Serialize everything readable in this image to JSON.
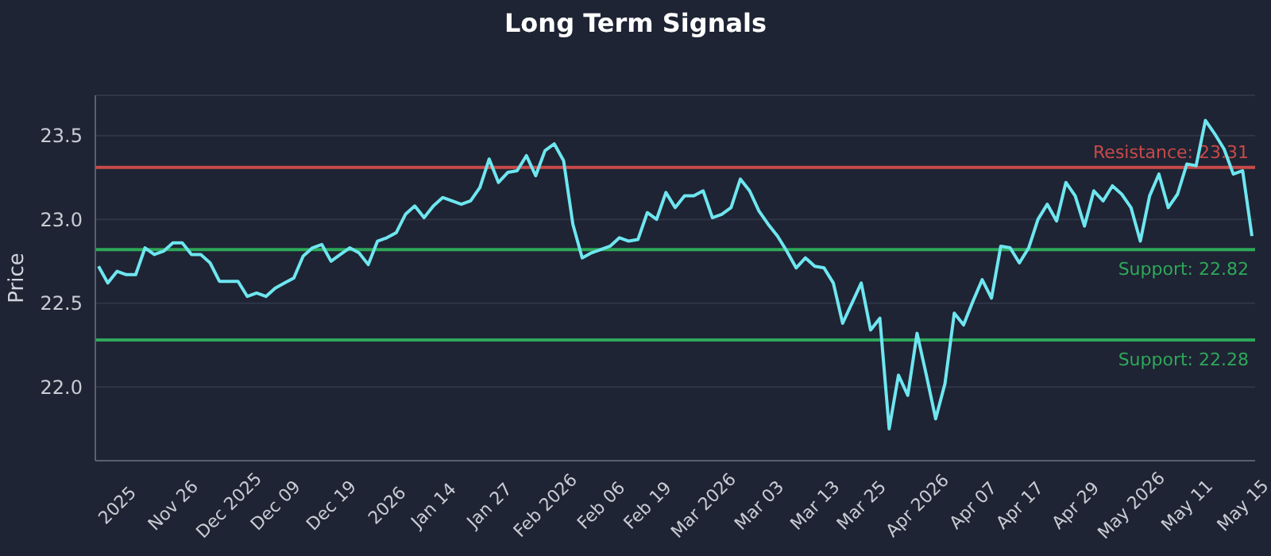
{
  "chart_data": {
    "type": "line",
    "title": "Long Term Signals",
    "ylabel": "Price",
    "categories": [
      null,
      null,
      "2025",
      null,
      null,
      null,
      null,
      null,
      "Nov 26",
      null,
      null,
      null,
      null,
      null,
      "Dec 2025",
      null,
      null,
      null,
      null,
      "Dec 09",
      null,
      null,
      null,
      null,
      null,
      "Dec 19",
      null,
      null,
      null,
      null,
      null,
      "2026",
      null,
      null,
      null,
      null,
      "Jan 14",
      null,
      null,
      null,
      null,
      null,
      "Jan 27",
      null,
      null,
      null,
      null,
      null,
      "Feb 2026",
      null,
      null,
      null,
      null,
      null,
      "Feb 06",
      null,
      null,
      null,
      null,
      "Feb 19",
      null,
      null,
      null,
      null,
      null,
      "Mar 2026",
      null,
      null,
      null,
      null,
      null,
      "Mar 03",
      null,
      null,
      null,
      null,
      null,
      "Mar 13",
      null,
      null,
      null,
      null,
      "Mar 25",
      null,
      null,
      null,
      null,
      null,
      "Apr 2026",
      null,
      null,
      null,
      null,
      null,
      "Apr 07",
      null,
      null,
      null,
      null,
      "Apr 17",
      null,
      null,
      null,
      null,
      null,
      "Apr 29",
      null,
      null,
      null,
      null,
      null,
      "May 2026",
      null,
      null,
      null,
      null,
      null,
      "May 11",
      null,
      null,
      null,
      null,
      null,
      "May 15",
      null
    ],
    "series": [
      {
        "color": "#6ee6f0",
        "values": [
          22.72,
          22.62,
          22.69,
          22.67,
          22.67,
          22.83,
          22.79,
          22.81,
          22.86,
          22.86,
          22.79,
          22.79,
          22.74,
          22.63,
          22.63,
          22.63,
          22.54,
          22.56,
          22.54,
          22.59,
          22.62,
          22.65,
          22.78,
          22.83,
          22.85,
          22.75,
          22.79,
          22.83,
          22.8,
          22.73,
          22.87,
          22.89,
          22.92,
          23.03,
          23.08,
          23.01,
          23.08,
          23.13,
          23.11,
          23.09,
          23.11,
          23.19,
          23.36,
          23.22,
          23.28,
          23.29,
          23.38,
          23.26,
          23.41,
          23.45,
          23.35,
          22.97,
          22.77,
          22.8,
          22.82,
          22.84,
          22.89,
          22.87,
          22.88,
          23.04,
          23.0,
          23.16,
          23.07,
          23.14,
          23.14,
          23.17,
          23.01,
          23.03,
          23.07,
          23.24,
          23.17,
          23.05,
          22.97,
          22.9,
          22.81,
          22.71,
          22.77,
          22.72,
          22.71,
          22.62,
          22.38,
          22.5,
          22.62,
          22.34,
          22.41,
          21.75,
          22.07,
          21.95,
          22.32,
          22.07,
          21.81,
          22.02,
          22.44,
          22.37,
          22.51,
          22.64,
          22.53,
          22.84,
          22.83,
          22.74,
          22.83,
          23.0,
          23.09,
          22.99,
          23.22,
          23.14,
          22.96,
          23.17,
          23.11,
          23.2,
          23.15,
          23.07,
          22.87,
          23.14,
          23.27,
          23.07,
          23.15,
          23.33,
          23.32,
          23.59,
          23.51,
          23.42,
          23.27,
          23.29,
          22.9
        ]
      }
    ],
    "ylim": [
      21.56,
      23.74
    ],
    "yticks": [
      {
        "value": 22,
        "label": "22.0"
      },
      {
        "value": 22.5,
        "label": "22.5"
      },
      {
        "value": 23,
        "label": "23.0"
      },
      {
        "value": 23.5,
        "label": "23.5"
      }
    ],
    "grid": "y",
    "legend": false,
    "marker": "none",
    "line_style": "solid",
    "ref_lines": [
      {
        "axis": "y",
        "value": 23.31,
        "label": "Resistance: 23.31",
        "color": "#c94a4a"
      },
      {
        "axis": "y",
        "value": 22.82,
        "label": "Support: 22.82",
        "color": "#2ea85a"
      },
      {
        "axis": "y",
        "value": 22.28,
        "label": "Support: 22.28",
        "color": "#2ea85a"
      }
    ]
  }
}
